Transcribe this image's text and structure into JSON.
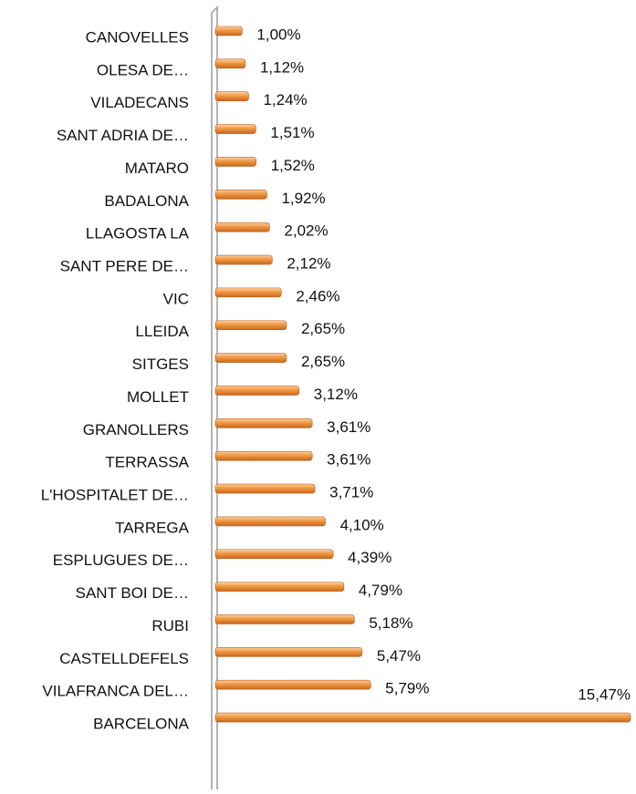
{
  "chart_data": {
    "type": "bar",
    "orientation": "horizontal",
    "color": "#f0963c",
    "categories": [
      "CANOVELLES",
      "OLESA DE…",
      "VILADECANS",
      "SANT ADRIA DE…",
      "MATARO",
      "BADALONA",
      "LLAGOSTA LA",
      "SANT PERE DE…",
      "VIC",
      "LLEIDA",
      "SITGES",
      "MOLLET",
      "GRANOLLERS",
      "TERRASSA",
      "L'HOSPITALET DE…",
      "TARREGA",
      "ESPLUGUES DE…",
      "SANT BOI DE…",
      "RUBI",
      "CASTELLDEFELS",
      "VILAFRANCA DEL…",
      "BARCELONA"
    ],
    "values": [
      1.0,
      1.12,
      1.24,
      1.51,
      1.52,
      1.92,
      2.02,
      2.12,
      2.46,
      2.65,
      2.65,
      3.12,
      3.61,
      3.61,
      3.71,
      4.1,
      4.39,
      4.79,
      5.18,
      5.47,
      5.79,
      15.47
    ],
    "value_labels": [
      "1,00%",
      "1,12%",
      "1,24%",
      "1,51%",
      "1,52%",
      "1,92%",
      "2,02%",
      "2,12%",
      "2,46%",
      "2,65%",
      "2,65%",
      "3,12%",
      "3,61%",
      "3,61%",
      "3,71%",
      "4,10%",
      "4,39%",
      "4,79%",
      "5,18%",
      "5,47%",
      "5,79%",
      "15,47%"
    ]
  }
}
